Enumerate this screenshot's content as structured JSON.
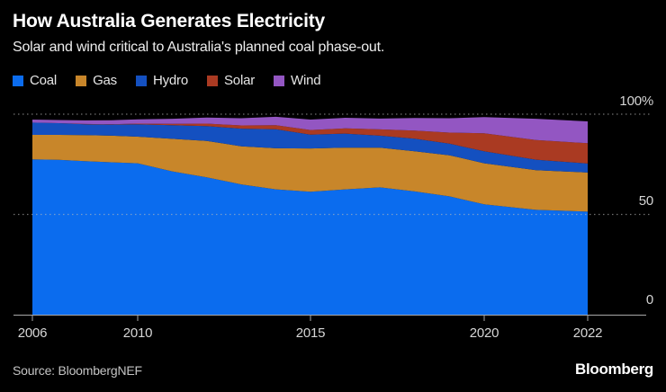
{
  "header": {
    "title": "How Australia Generates Electricity",
    "subtitle": "Solar and wind critical to Australia's planned coal phase-out."
  },
  "axis": {
    "y_ticks": [
      "100%",
      "50",
      "0"
    ],
    "x_ticks": [
      "2006",
      "2010",
      "2015",
      "2020",
      "2022"
    ]
  },
  "footer": {
    "source": "Source: BloombergNEF",
    "logo": "Bloomberg"
  },
  "colors": {
    "background": "#000000",
    "coal": "#0b6cee",
    "gas": "#c8862a",
    "hydro": "#1450c0",
    "solar": "#aa3a22",
    "wind": "#9356c2",
    "grid": "#bbbbbb",
    "axis_line": "#a8a8a8",
    "axis_text": "#d6d6d6"
  },
  "chart_data": {
    "type": "area",
    "stacked": true,
    "unit": "percent of generation",
    "title": "How Australia Generates Electricity",
    "xlabel": "",
    "ylabel": "%",
    "ylim": [
      0,
      100
    ],
    "grid": "dotted horizontal at 50 and 100",
    "legend_position": "top-left",
    "x": [
      2006,
      2007,
      2008,
      2009,
      2010,
      2011,
      2012,
      2013,
      2014,
      2015,
      2016,
      2017,
      2018,
      2019,
      2020,
      2021,
      2022
    ],
    "x_tick_years": [
      2006,
      2010,
      2015,
      2020,
      2022
    ],
    "series": [
      {
        "name": "Coal",
        "color_key": "coal",
        "values": [
          77.5,
          77.2,
          76.6,
          76.0,
          75.5,
          71.5,
          68.5,
          65.0,
          62.5,
          61.3,
          62.5,
          63.5,
          61.5,
          59.0,
          55.0,
          52.3,
          51.4
        ]
      },
      {
        "name": "Gas",
        "color_key": "gas",
        "values": [
          12.2,
          12.5,
          13.0,
          13.3,
          13.3,
          16.2,
          18.2,
          19.0,
          20.5,
          21.6,
          20.8,
          19.8,
          20.0,
          20.5,
          20.5,
          19.8,
          19.5
        ]
      },
      {
        "name": "Hydro",
        "color_key": "hydro",
        "values": [
          6.1,
          5.8,
          5.4,
          5.5,
          6.2,
          6.8,
          7.4,
          8.8,
          9.5,
          6.9,
          7.0,
          6.0,
          6.3,
          5.8,
          6.0,
          5.2,
          4.5
        ]
      },
      {
        "name": "Solar",
        "color_key": "solar",
        "values": [
          0.0,
          0.0,
          0.1,
          0.2,
          0.3,
          0.7,
          1.2,
          1.6,
          2.0,
          2.3,
          2.6,
          3.1,
          4.0,
          5.5,
          9.0,
          9.8,
          10.1
        ]
      },
      {
        "name": "Wind",
        "color_key": "wind",
        "values": [
          1.5,
          1.6,
          1.8,
          2.0,
          2.1,
          2.5,
          3.0,
          3.6,
          4.2,
          5.2,
          5.3,
          5.4,
          6.3,
          7.2,
          8.0,
          10.6,
          10.9
        ]
      }
    ]
  }
}
